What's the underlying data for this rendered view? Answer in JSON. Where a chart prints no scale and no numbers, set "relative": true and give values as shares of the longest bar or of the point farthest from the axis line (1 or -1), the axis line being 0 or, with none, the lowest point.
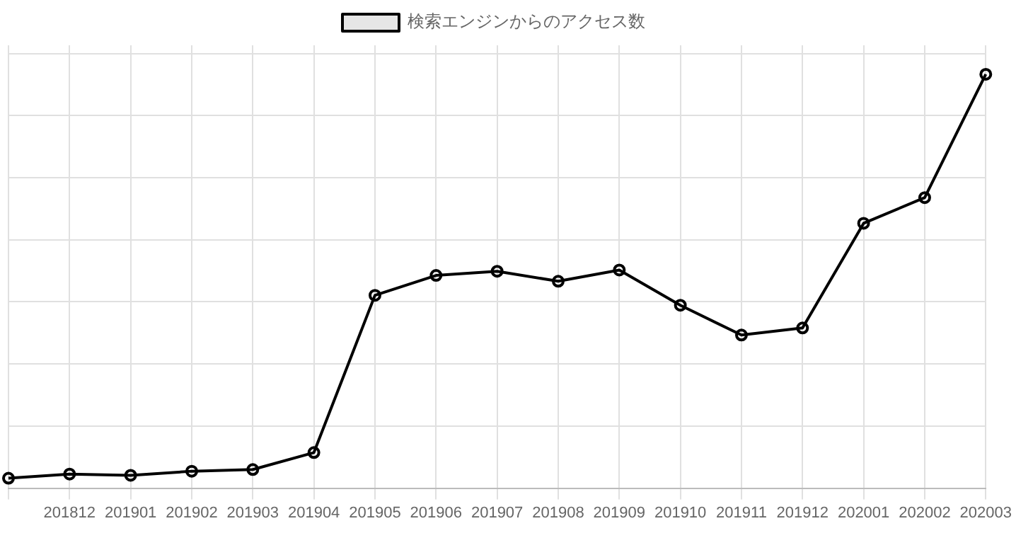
{
  "chart_data": {
    "type": "line",
    "relative": true,
    "categories": [
      null,
      "201812",
      "201901",
      "201902",
      "201903",
      "201904",
      "201905",
      "201906",
      "201907",
      "201908",
      "201909",
      "201910",
      "201911",
      "201912",
      "202001",
      "202002",
      "202003"
    ],
    "series": [
      {
        "name": "検索エンジンからのアクセス数",
        "color": "#000000",
        "values": [
          0.024,
          0.034,
          0.031,
          0.041,
          0.045,
          0.086,
          0.466,
          0.514,
          0.524,
          0.5,
          0.527,
          0.442,
          0.37,
          0.387,
          0.64,
          0.702,
          1
        ]
      }
    ],
    "grid": true,
    "legend": "top",
    "marker": "circle",
    "line_style": "solid"
  }
}
